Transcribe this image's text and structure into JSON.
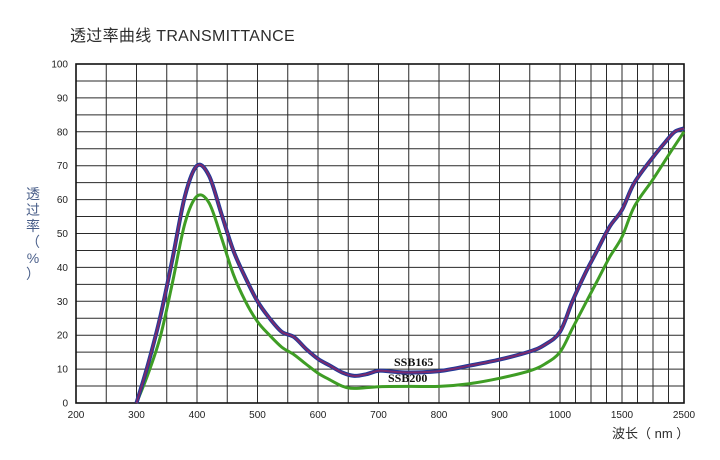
{
  "chart_data": {
    "type": "line",
    "title": "透过率曲线 TRANSMITTANCE",
    "ylabel": "透\n过\n率\n（\n%\n）",
    "xlabel": "波长（ nm ）",
    "x_ticks": [
      "200",
      "300",
      "400",
      "500",
      "600",
      "700",
      "800",
      "900",
      "1000",
      "1500",
      "2500"
    ],
    "y_ticks": [
      0,
      10,
      20,
      30,
      40,
      50,
      60,
      70,
      80,
      90,
      100
    ],
    "ylim": [
      0,
      100
    ],
    "x_scale": "non-uniform: 200–1000 linear, then 1500 and 2500 as equal steps",
    "grid": true,
    "series": [
      {
        "name": "SSB165",
        "color": "#7a2a6e",
        "outline_color": "#1f3a9a",
        "points": [
          [
            300,
            0
          ],
          [
            320,
            12
          ],
          [
            340,
            26
          ],
          [
            360,
            43
          ],
          [
            380,
            61
          ],
          [
            400,
            70
          ],
          [
            420,
            67
          ],
          [
            440,
            56
          ],
          [
            460,
            45
          ],
          [
            480,
            37
          ],
          [
            500,
            30
          ],
          [
            520,
            25
          ],
          [
            540,
            21
          ],
          [
            560,
            19.5
          ],
          [
            580,
            16
          ],
          [
            600,
            13
          ],
          [
            620,
            11
          ],
          [
            640,
            9
          ],
          [
            660,
            8
          ],
          [
            680,
            8.5
          ],
          [
            700,
            9.5
          ],
          [
            720,
            9.3
          ],
          [
            750,
            9
          ],
          [
            800,
            9.4
          ],
          [
            850,
            11
          ],
          [
            900,
            12.8
          ],
          [
            950,
            15.2
          ],
          [
            975,
            17.2
          ],
          [
            1000,
            21
          ],
          [
            1100,
            30
          ],
          [
            1200,
            38
          ],
          [
            1300,
            45
          ],
          [
            1400,
            52
          ],
          [
            1500,
            57
          ],
          [
            1700,
            65
          ],
          [
            2000,
            72.5
          ],
          [
            2200,
            77
          ],
          [
            2350,
            80
          ],
          [
            2500,
            81
          ]
        ]
      },
      {
        "name": "SSB200",
        "color": "#3f9d25",
        "points": [
          [
            300,
            0
          ],
          [
            320,
            9
          ],
          [
            340,
            20
          ],
          [
            360,
            36
          ],
          [
            380,
            53
          ],
          [
            400,
            61
          ],
          [
            420,
            59
          ],
          [
            440,
            49
          ],
          [
            460,
            38
          ],
          [
            480,
            30
          ],
          [
            500,
            24
          ],
          [
            520,
            20
          ],
          [
            540,
            16.5
          ],
          [
            560,
            14.3
          ],
          [
            580,
            11.5
          ],
          [
            600,
            8.8
          ],
          [
            620,
            6.8
          ],
          [
            640,
            5
          ],
          [
            660,
            4.3
          ],
          [
            700,
            4.8
          ],
          [
            750,
            4.9
          ],
          [
            800,
            4.9
          ],
          [
            850,
            5.7
          ],
          [
            900,
            7.3
          ],
          [
            950,
            9.5
          ],
          [
            975,
            11.5
          ],
          [
            1000,
            15
          ],
          [
            1100,
            22
          ],
          [
            1200,
            29
          ],
          [
            1300,
            36
          ],
          [
            1400,
            43
          ],
          [
            1500,
            49
          ],
          [
            1700,
            58
          ],
          [
            2000,
            66
          ],
          [
            2300,
            74.5
          ],
          [
            2500,
            80
          ]
        ]
      }
    ],
    "annotations": [
      "SSB165",
      "SSB200"
    ]
  }
}
